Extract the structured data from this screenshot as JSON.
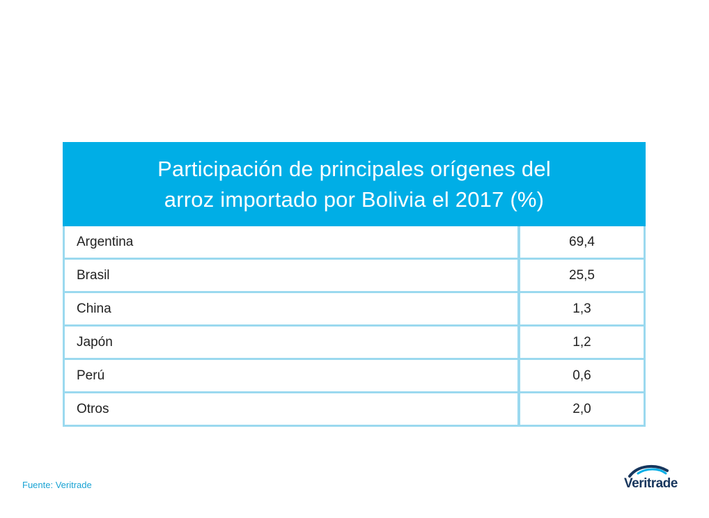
{
  "chart_data": {
    "type": "table",
    "title": "Participación de principales orígenes del arroz importado por Bolivia el 2017 (%)",
    "categories": [
      "Argentina",
      "Brasil",
      "China",
      "Japón",
      "Perú",
      "Otros"
    ],
    "values": [
      69.4,
      25.5,
      1.3,
      1.2,
      0.6,
      2.0
    ],
    "value_labels": [
      "69,4",
      "25,5",
      "1,3",
      "1,2",
      "0,6",
      "2,0"
    ]
  },
  "header": {
    "title_line1": "Participación de principales orígenes del",
    "title_line2": "arroz importado por Bolivia el 2017 (%)"
  },
  "footer": {
    "source": "Fuente: Veritrade",
    "logo_text": "Veritrade"
  },
  "colors": {
    "header_bg": "#00aee6",
    "grid_line": "#9bd9ef",
    "source_text": "#1aa3d4",
    "logo_dark": "#17365d"
  }
}
